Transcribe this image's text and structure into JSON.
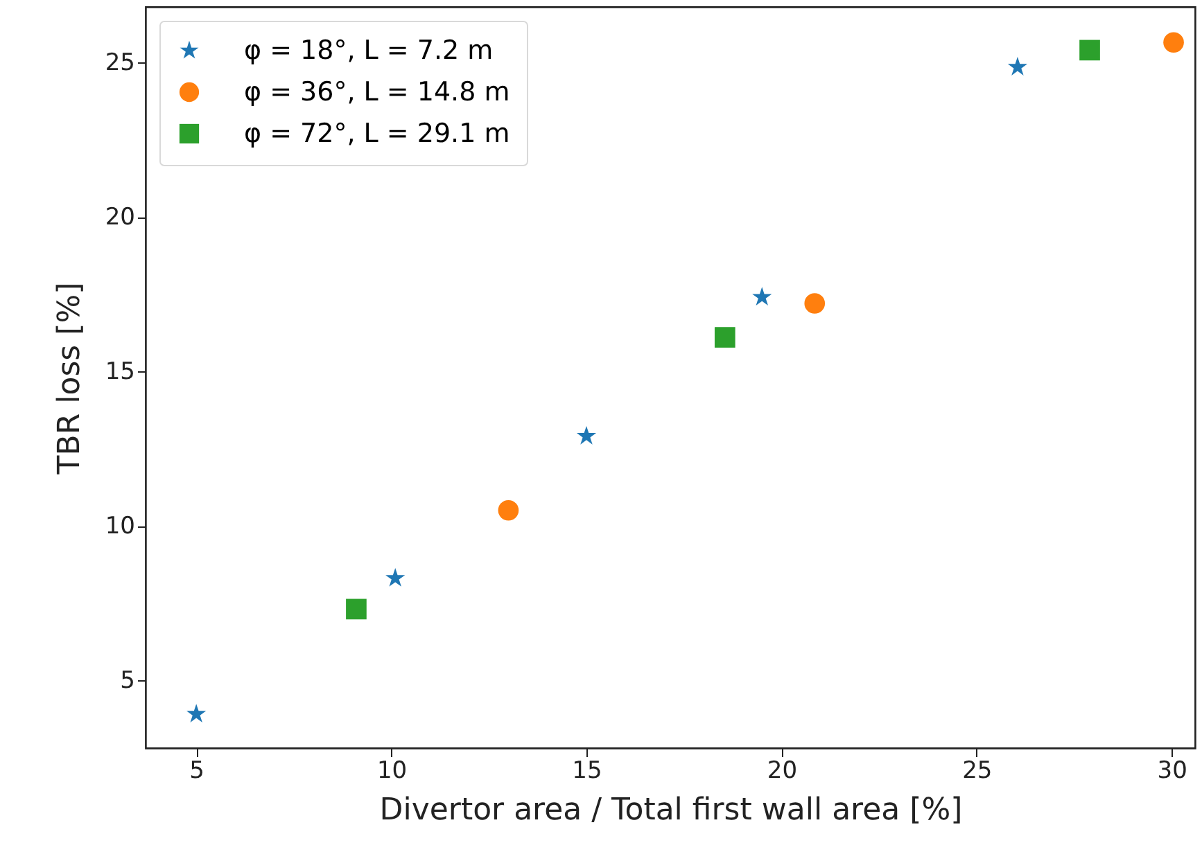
{
  "chart_data": {
    "type": "scatter",
    "xlabel": "Divertor area / Total first wall area [%]",
    "ylabel": "TBR loss [%]",
    "xlim": [
      3.7,
      30.6
    ],
    "xticks": [
      5,
      10,
      15,
      20,
      25,
      30
    ],
    "ylim": [
      2.8,
      26.8
    ],
    "yticks": [
      5,
      10,
      15,
      20,
      25
    ],
    "grid": false,
    "legend": "top left",
    "series": [
      {
        "name": "φ = 18°, L = 7.2 m",
        "color": "#1f77b4",
        "marker": "star",
        "x": [
          5.0,
          10.1,
          15.0,
          19.5,
          26.05
        ],
        "values": [
          3.9,
          8.3,
          12.9,
          17.4,
          24.85
        ]
      },
      {
        "name": "φ = 36°, L = 14.8 m",
        "color": "#ff7f0e",
        "marker": "circle",
        "x": [
          13.0,
          20.85,
          30.05
        ],
        "values": [
          10.5,
          17.2,
          25.65
        ]
      },
      {
        "name": "φ = 72°, L = 29.1 m",
        "color": "#2ca02c",
        "marker": "square",
        "x": [
          9.1,
          18.55,
          27.9
        ],
        "values": [
          7.3,
          16.1,
          25.4
        ]
      }
    ]
  }
}
